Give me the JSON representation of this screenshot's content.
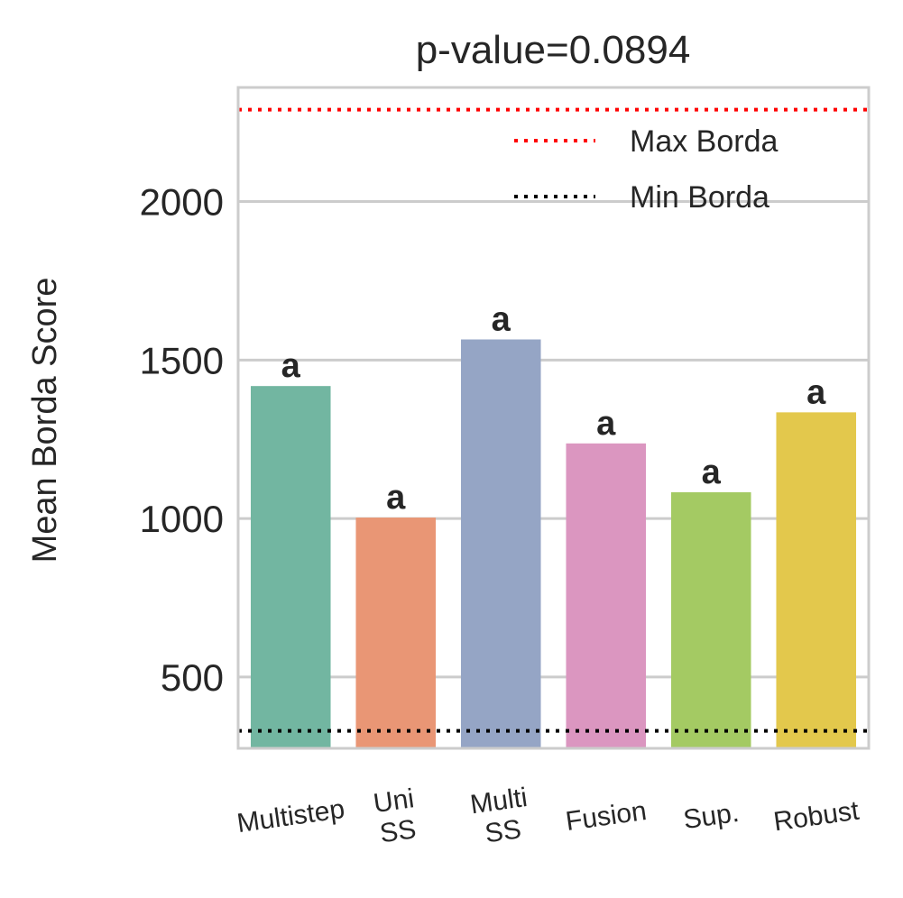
{
  "chart_data": {
    "type": "bar",
    "title": "p-value=0.0894",
    "xlabel": "",
    "ylabel": "Mean Borda Score",
    "categories": [
      "Multistep",
      "Uni\nSS",
      "Multi\nSS",
      "Fusion",
      "Sup.",
      "Robust"
    ],
    "values": [
      1418,
      1003,
      1565,
      1237,
      1083,
      1335
    ],
    "bar_labels": [
      "a",
      "a",
      "a",
      "a",
      "a",
      "a"
    ],
    "colors": [
      "#72b6a1",
      "#e99675",
      "#95a5c5",
      "#db96c0",
      "#a4ca63",
      "#e3c84c"
    ],
    "ylim": [
      275,
      2360
    ],
    "yticks": [
      500,
      1000,
      1500,
      2000
    ],
    "reference_lines": [
      {
        "name": "Max Borda",
        "value": 2290,
        "color": "#ff0000",
        "style": "dotted"
      },
      {
        "name": "Min Borda",
        "value": 330,
        "color": "#000000",
        "style": "dotted"
      }
    ],
    "grid": true,
    "legend_position": "top-right",
    "xtick_rotation": -8
  }
}
